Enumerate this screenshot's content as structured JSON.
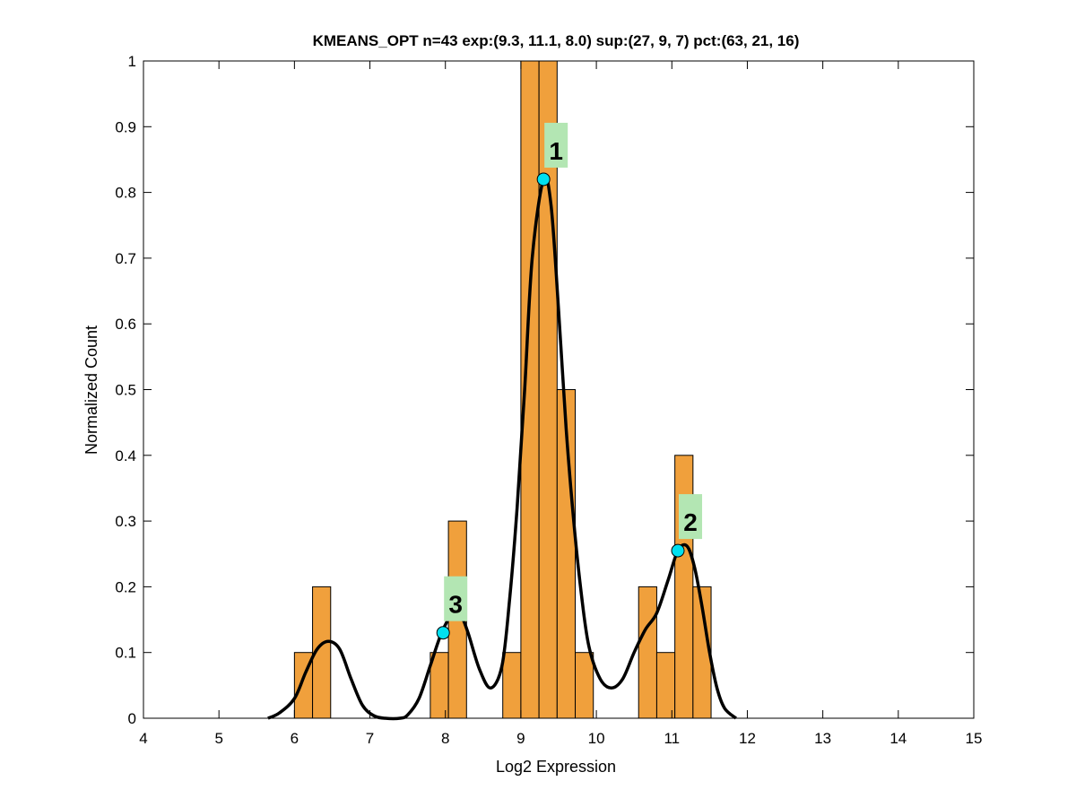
{
  "chart_data": {
    "type": "bar",
    "title": "KMEANS_OPT n=43 exp:(9.3, 11.1, 8.0) sup:(27, 9, 7) pct:(63, 21, 16)",
    "xlabel": "Log2 Expression",
    "ylabel": "Normalized Count",
    "xlim": [
      4,
      15
    ],
    "ylim": [
      0,
      1
    ],
    "xticks": [
      "4",
      "5",
      "6",
      "7",
      "8",
      "9",
      "10",
      "11",
      "12",
      "13",
      "14",
      "15"
    ],
    "yticks": [
      "0",
      "0.1",
      "0.2",
      "0.3",
      "0.4",
      "0.5",
      "0.6",
      "0.7",
      "0.8",
      "0.9",
      "1"
    ],
    "grid": false,
    "colors": {
      "bar": "#f0a03c",
      "bar_edge": "#000000",
      "curve": "#000000",
      "peak_marker": "#00e0f0",
      "peak_label_bg": "#b3e6b3"
    },
    "bin_width": 0.24,
    "bins": [
      {
        "x": 6.12,
        "value": 0.1
      },
      {
        "x": 6.36,
        "value": 0.2
      },
      {
        "x": 7.92,
        "value": 0.1
      },
      {
        "x": 8.16,
        "value": 0.3
      },
      {
        "x": 8.88,
        "value": 0.1
      },
      {
        "x": 9.12,
        "value": 1.0
      },
      {
        "x": 9.36,
        "value": 1.0
      },
      {
        "x": 9.6,
        "value": 0.5
      },
      {
        "x": 9.84,
        "value": 0.1
      },
      {
        "x": 10.68,
        "value": 0.2
      },
      {
        "x": 10.92,
        "value": 0.1
      },
      {
        "x": 11.16,
        "value": 0.4
      },
      {
        "x": 11.4,
        "value": 0.2
      }
    ],
    "density_curve": [
      {
        "x": 5.65,
        "y": 0.0
      },
      {
        "x": 5.8,
        "y": 0.008
      },
      {
        "x": 6.0,
        "y": 0.03
      },
      {
        "x": 6.15,
        "y": 0.07
      },
      {
        "x": 6.3,
        "y": 0.105
      },
      {
        "x": 6.45,
        "y": 0.117
      },
      {
        "x": 6.6,
        "y": 0.105
      },
      {
        "x": 6.75,
        "y": 0.06
      },
      {
        "x": 6.9,
        "y": 0.02
      },
      {
        "x": 7.05,
        "y": 0.004
      },
      {
        "x": 7.2,
        "y": 0.0
      },
      {
        "x": 7.4,
        "y": 0.0
      },
      {
        "x": 7.5,
        "y": 0.005
      },
      {
        "x": 7.65,
        "y": 0.03
      },
      {
        "x": 7.8,
        "y": 0.08
      },
      {
        "x": 7.95,
        "y": 0.13
      },
      {
        "x": 8.1,
        "y": 0.16
      },
      {
        "x": 8.2,
        "y": 0.158
      },
      {
        "x": 8.3,
        "y": 0.13
      },
      {
        "x": 8.45,
        "y": 0.075
      },
      {
        "x": 8.6,
        "y": 0.046
      },
      {
        "x": 8.75,
        "y": 0.08
      },
      {
        "x": 8.85,
        "y": 0.18
      },
      {
        "x": 8.95,
        "y": 0.32
      },
      {
        "x": 9.05,
        "y": 0.5
      },
      {
        "x": 9.15,
        "y": 0.7
      },
      {
        "x": 9.3,
        "y": 0.82
      },
      {
        "x": 9.4,
        "y": 0.78
      },
      {
        "x": 9.5,
        "y": 0.62
      },
      {
        "x": 9.6,
        "y": 0.44
      },
      {
        "x": 9.7,
        "y": 0.3
      },
      {
        "x": 9.8,
        "y": 0.19
      },
      {
        "x": 9.9,
        "y": 0.11
      },
      {
        "x": 10.05,
        "y": 0.06
      },
      {
        "x": 10.2,
        "y": 0.046
      },
      {
        "x": 10.35,
        "y": 0.06
      },
      {
        "x": 10.5,
        "y": 0.1
      },
      {
        "x": 10.65,
        "y": 0.135
      },
      {
        "x": 10.8,
        "y": 0.16
      },
      {
        "x": 10.95,
        "y": 0.21
      },
      {
        "x": 11.08,
        "y": 0.255
      },
      {
        "x": 11.2,
        "y": 0.262
      },
      {
        "x": 11.3,
        "y": 0.23
      },
      {
        "x": 11.4,
        "y": 0.17
      },
      {
        "x": 11.5,
        "y": 0.1
      },
      {
        "x": 11.6,
        "y": 0.045
      },
      {
        "x": 11.7,
        "y": 0.015
      },
      {
        "x": 11.85,
        "y": 0.0
      }
    ],
    "peaks": [
      {
        "label": "1",
        "x": 9.3,
        "y": 0.82
      },
      {
        "label": "2",
        "x": 11.08,
        "y": 0.255
      },
      {
        "label": "3",
        "x": 7.97,
        "y": 0.13
      }
    ]
  }
}
